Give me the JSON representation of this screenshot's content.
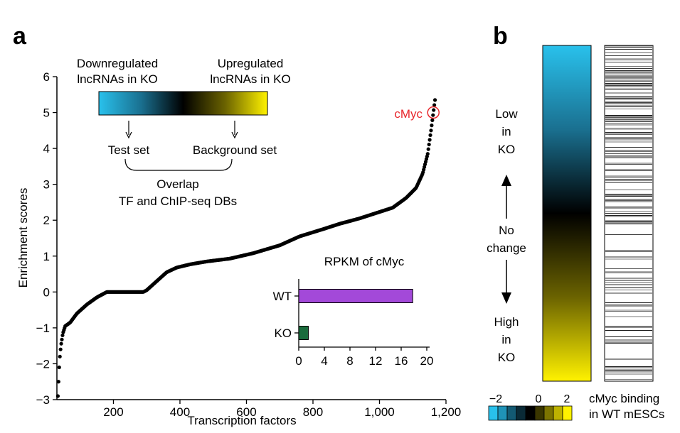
{
  "panel_a": {
    "label": "a",
    "annotation": "cMyc",
    "schematic": {
      "down_label_1": "Downregulated",
      "down_label_2": "lncRNAs in KO",
      "up_label_1": "Upregulated",
      "up_label_2": "lncRNAs in KO",
      "test_set": "Test set",
      "background_set": "Background set",
      "overlap": "Overlap",
      "databases": "TF and ChIP-seq DBs",
      "colors": [
        "#29c1ec",
        "#1a7090",
        "#000000",
        "#6b6300",
        "#fff200"
      ]
    }
  },
  "panel_b": {
    "label": "b",
    "low_1": "Low",
    "low_2": "in",
    "low_3": "KO",
    "no_1": "No",
    "no_2": "change",
    "high_1": "High",
    "high_2": "in",
    "high_3": "KO",
    "legend_label_1": "cMyc binding",
    "legend_label_2": "in WT mESCs",
    "scale_ticks": [
      "−2",
      "0",
      "2"
    ],
    "scale_colors": [
      "#29c1ec",
      "#1f93b8",
      "#135a73",
      "#0a2a36",
      "#000000",
      "#3a3600",
      "#7c7400",
      "#bdb200",
      "#fff200"
    ]
  },
  "chart_data": [
    {
      "type": "scatter",
      "title": "",
      "xlabel": "Transcription factors",
      "ylabel": "Enrichment scores",
      "xlim": [
        30,
        1200
      ],
      "ylim": [
        -3,
        6
      ],
      "xticks": [
        200,
        400,
        600,
        800,
        1000,
        1200
      ],
      "xtick_labels": [
        "200",
        "400",
        "600",
        "800",
        "1,000",
        "1,200"
      ],
      "yticks": [
        -3,
        -2,
        -1,
        0,
        1,
        2,
        3,
        4,
        5,
        6
      ],
      "ytick_labels": [
        "−3",
        "−2",
        "−1",
        "0",
        "1",
        "2",
        "3",
        "4",
        "5",
        "6"
      ],
      "highlight": {
        "label": "cMyc",
        "x": 1162,
        "y": 5.0,
        "color": "#e8262b"
      },
      "curve": {
        "description": "sorted enrichment scores, one point per transcription factor",
        "x_range": [
          33,
          1167
        ],
        "anchors": [
          [
            33,
            -2.9
          ],
          [
            36,
            -2.3
          ],
          [
            38,
            -1.9
          ],
          [
            42,
            -1.5
          ],
          [
            48,
            -1.15
          ],
          [
            55,
            -0.95
          ],
          [
            70,
            -0.85
          ],
          [
            90,
            -0.6
          ],
          [
            120,
            -0.35
          ],
          [
            150,
            -0.15
          ],
          [
            170,
            -0.05
          ],
          [
            180,
            0
          ],
          [
            290,
            0
          ],
          [
            300,
            0.05
          ],
          [
            330,
            0.3
          ],
          [
            360,
            0.55
          ],
          [
            390,
            0.68
          ],
          [
            430,
            0.77
          ],
          [
            480,
            0.85
          ],
          [
            550,
            0.93
          ],
          [
            620,
            1.08
          ],
          [
            700,
            1.3
          ],
          [
            760,
            1.55
          ],
          [
            830,
            1.75
          ],
          [
            880,
            1.9
          ],
          [
            940,
            2.05
          ],
          [
            990,
            2.2
          ],
          [
            1040,
            2.35
          ],
          [
            1080,
            2.62
          ],
          [
            1110,
            2.9
          ],
          [
            1130,
            3.3
          ],
          [
            1145,
            3.85
          ],
          [
            1155,
            4.5
          ],
          [
            1162,
            5.0
          ],
          [
            1167,
            5.35
          ]
        ]
      }
    },
    {
      "type": "bar",
      "title": "RPKM of cMyc",
      "orientation": "horizontal",
      "categories": [
        "WT",
        "KO"
      ],
      "values": [
        17.8,
        1.5
      ],
      "colors": [
        "#a349d9",
        "#1a6b3c"
      ],
      "xlim": [
        0,
        20
      ],
      "xticks": [
        0,
        4,
        8,
        12,
        16,
        20
      ],
      "xtick_labels": [
        "0",
        "4",
        "8",
        "12",
        "16",
        "20"
      ]
    }
  ]
}
